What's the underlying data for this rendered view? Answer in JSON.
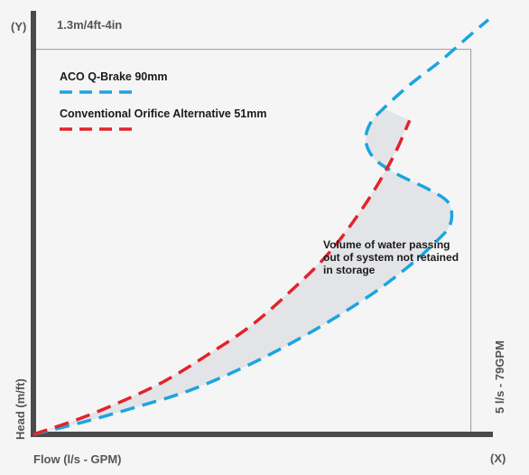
{
  "colors": {
    "background": "#f5f5f5",
    "axis": "#4a4a4a",
    "ref_line": "#9a9a9a",
    "blue_series": "#1ba5e0",
    "red_series": "#e2232a",
    "region_fill": "#e3e4e8",
    "text_gray": "#555555",
    "text_dark": "#1a1a1a"
  },
  "chart_data": {
    "type": "line",
    "axes": {
      "y_axis_label": "Head (m/ft)",
      "y_end_label": "(Y)",
      "x_axis_label": "Flow (l/s - GPM)",
      "x_end_label": "(X)",
      "x_ref_label": "5 l/s - 79GPM",
      "y_ref_label": "1.3m/4ft-4in"
    },
    "x_ref": 5,
    "y_ref": 1.3,
    "xlim": [
      0,
      5.2
    ],
    "ylim": [
      0,
      1.43
    ],
    "legend": {
      "placement": "top-left",
      "entries": [
        {
          "label": "ACO Q-Brake 90mm",
          "series": "aco"
        },
        {
          "label": "Conventional Orifice Alternative 51mm",
          "series": "orifice"
        }
      ]
    },
    "series": [
      {
        "name": "ACO Q-Brake 90mm",
        "key": "aco",
        "style": "dashed",
        "color": "#1ba5e0",
        "points": [
          [
            0.0,
            0.0
          ],
          [
            0.55,
            0.04
          ],
          [
            1.15,
            0.09
          ],
          [
            1.8,
            0.15
          ],
          [
            2.5,
            0.24
          ],
          [
            3.2,
            0.35
          ],
          [
            3.85,
            0.47
          ],
          [
            4.3,
            0.57
          ],
          [
            4.6,
            0.65
          ],
          [
            4.75,
            0.7
          ],
          [
            4.78,
            0.75
          ],
          [
            4.72,
            0.79
          ],
          [
            4.5,
            0.83
          ],
          [
            4.15,
            0.88
          ],
          [
            3.9,
            0.93
          ],
          [
            3.8,
            0.99
          ],
          [
            3.85,
            1.05
          ],
          [
            4.0,
            1.1
          ],
          [
            4.3,
            1.18
          ],
          [
            4.65,
            1.26
          ],
          [
            5.0,
            1.35
          ],
          [
            5.2,
            1.4
          ]
        ]
      },
      {
        "name": "Conventional Orifice Alternative 51mm",
        "key": "orifice",
        "style": "dashed",
        "color": "#e2232a",
        "points": [
          [
            0.0,
            0.0
          ],
          [
            0.5,
            0.05
          ],
          [
            1.0,
            0.11
          ],
          [
            1.5,
            0.18
          ],
          [
            2.0,
            0.27
          ],
          [
            2.5,
            0.37
          ],
          [
            3.0,
            0.5
          ],
          [
            3.4,
            0.62
          ],
          [
            3.8,
            0.78
          ],
          [
            4.1,
            0.93
          ],
          [
            4.3,
            1.06
          ]
        ]
      }
    ],
    "annotations": [
      {
        "text_lines": [
          "Volume of water passing",
          "out of system not retained",
          "in storage"
        ],
        "at": [
          3.15,
          0.61
        ]
      }
    ]
  }
}
